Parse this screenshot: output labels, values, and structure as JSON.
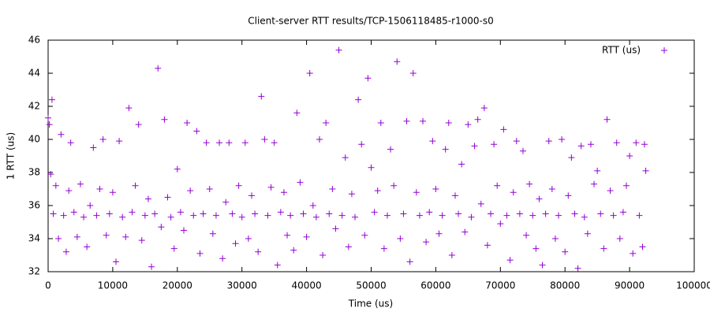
{
  "chart_data": {
    "type": "scatter",
    "title": "Client-server RTT results/TCP-1506118485-r1000-s0",
    "x_label": "Time (us)",
    "y_label": "1 RTT (us)",
    "xlim": [
      0,
      100000
    ],
    "xticks": [
      0,
      10000,
      20000,
      30000,
      40000,
      50000,
      60000,
      70000,
      80000,
      90000,
      100000
    ],
    "ylim": [
      32,
      46
    ],
    "yticks": [
      32,
      34,
      36,
      38,
      40,
      42,
      44,
      46
    ],
    "grid": false,
    "legend": "top-right",
    "series": [
      {
        "name": "RTT (us)",
        "color": "#9400d3",
        "x": [
          0,
          200,
          400,
          600,
          800,
          1200,
          1600,
          2000,
          2400,
          2800,
          3200,
          3500,
          4000,
          4500,
          5000,
          5500,
          6000,
          6500,
          7000,
          7500,
          8000,
          8500,
          9000,
          9500,
          10000,
          10500,
          11000,
          11500,
          12000,
          12500,
          13000,
          13500,
          14000,
          14500,
          15000,
          15500,
          16000,
          16500,
          17000,
          17500,
          18000,
          18500,
          19000,
          19500,
          20000,
          20500,
          21000,
          21500,
          22000,
          22500,
          23000,
          23500,
          24000,
          24500,
          25000,
          25500,
          26000,
          26500,
          27000,
          27500,
          28000,
          28500,
          29000,
          29500,
          30000,
          30500,
          31000,
          31500,
          32000,
          32500,
          33000,
          33500,
          34000,
          34500,
          35000,
          35500,
          36000,
          36500,
          37000,
          37500,
          38000,
          38500,
          39000,
          39500,
          40000,
          40500,
          41000,
          41500,
          42000,
          42500,
          43000,
          43500,
          44000,
          44500,
          45000,
          45500,
          46000,
          46500,
          47000,
          47500,
          48000,
          48500,
          49000,
          49500,
          50000,
          50500,
          51000,
          51500,
          52000,
          52500,
          53000,
          53500,
          54000,
          54500,
          55000,
          55500,
          56000,
          56500,
          57000,
          57500,
          58000,
          58500,
          59000,
          59500,
          60000,
          60500,
          61000,
          61500,
          62000,
          62500,
          63000,
          63500,
          64000,
          64500,
          65000,
          65500,
          66000,
          66500,
          67000,
          67500,
          68000,
          68500,
          69000,
          69500,
          70000,
          70500,
          71000,
          71500,
          72000,
          72500,
          73000,
          73500,
          74000,
          74500,
          75000,
          75500,
          76000,
          76500,
          77000,
          77500,
          78000,
          78500,
          79000,
          79500,
          80000,
          80500,
          81000,
          81500,
          82000,
          82500,
          83000,
          83500,
          84000,
          84500,
          85000,
          85500,
          86000,
          86500,
          87000,
          87500,
          88000,
          88500,
          89000,
          89500,
          90000,
          90500,
          91000,
          91500,
          92000,
          92300,
          92500
        ],
        "values": [
          41.3,
          40.9,
          37.9,
          42.4,
          35.5,
          37.2,
          34.0,
          40.3,
          35.4,
          33.2,
          36.9,
          39.8,
          35.6,
          34.1,
          37.3,
          35.3,
          33.5,
          36.0,
          39.5,
          35.4,
          37.0,
          40.0,
          34.2,
          35.5,
          36.8,
          32.6,
          39.9,
          35.3,
          34.1,
          41.9,
          35.6,
          37.2,
          40.9,
          33.9,
          35.4,
          36.4,
          32.3,
          35.5,
          44.3,
          34.7,
          41.2,
          36.5,
          35.3,
          33.4,
          38.2,
          35.6,
          34.5,
          41.0,
          36.9,
          35.4,
          40.5,
          33.1,
          35.5,
          39.8,
          37.0,
          34.3,
          35.4,
          39.8,
          32.8,
          36.2,
          39.8,
          35.5,
          33.7,
          37.2,
          35.3,
          39.8,
          34.0,
          36.6,
          35.5,
          33.2,
          42.6,
          40.0,
          35.4,
          37.1,
          39.8,
          32.4,
          35.6,
          36.8,
          34.2,
          35.4,
          33.3,
          41.6,
          37.4,
          35.5,
          34.1,
          44.0,
          36.0,
          35.3,
          40.0,
          33.0,
          41.0,
          35.5,
          37.0,
          34.6,
          45.4,
          35.4,
          38.9,
          33.5,
          36.7,
          35.3,
          42.4,
          39.7,
          34.2,
          43.7,
          38.3,
          35.6,
          36.9,
          41.0,
          33.4,
          35.4,
          39.4,
          37.2,
          44.7,
          34.0,
          35.5,
          41.1,
          32.6,
          44.0,
          36.8,
          35.4,
          41.1,
          33.8,
          35.6,
          39.9,
          37.0,
          34.3,
          35.4,
          39.4,
          41.0,
          33.0,
          36.6,
          35.5,
          38.5,
          34.4,
          40.9,
          35.3,
          39.6,
          41.2,
          36.1,
          41.9,
          33.6,
          35.5,
          39.7,
          37.2,
          34.9,
          40.6,
          35.4,
          32.7,
          36.8,
          39.9,
          35.5,
          39.3,
          34.2,
          37.3,
          35.4,
          33.4,
          36.4,
          32.4,
          35.5,
          39.9,
          37.0,
          34.0,
          35.4,
          40.0,
          33.2,
          36.6,
          38.9,
          35.5,
          32.2,
          39.6,
          35.3,
          34.3,
          39.7,
          37.3,
          38.1,
          35.5,
          33.4,
          41.2,
          36.9,
          35.4,
          39.8,
          34.0,
          35.6,
          37.2,
          39.0,
          33.1,
          39.8,
          35.4,
          33.5,
          39.7,
          38.1
        ]
      }
    ]
  }
}
